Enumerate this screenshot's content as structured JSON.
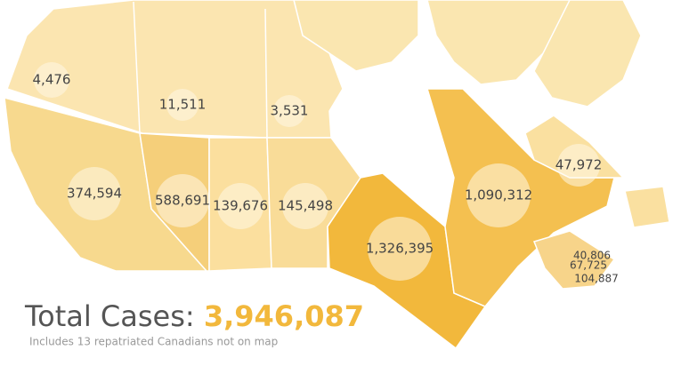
{
  "map": {
    "regions": [
      {
        "name": "Yukon",
        "label": "4,476"
      },
      {
        "name": "Northwest Territories",
        "label": "11,511"
      },
      {
        "name": "Nunavut",
        "label": "3,531"
      },
      {
        "name": "British Columbia",
        "label": "374,594"
      },
      {
        "name": "Alberta",
        "label": "588,691"
      },
      {
        "name": "Saskatchewan",
        "label": "139,676"
      },
      {
        "name": "Manitoba",
        "label": "145,498"
      },
      {
        "name": "Ontario",
        "label": "1,326,395"
      },
      {
        "name": "Quebec",
        "label": "1,090,312"
      },
      {
        "name": "Newfoundland and Labrador",
        "label": "47,972"
      },
      {
        "name": "Prince Edward Island",
        "label": "40,806"
      },
      {
        "name": "New Brunswick",
        "label": "67,725"
      },
      {
        "name": "Nova Scotia",
        "label": "104,887"
      }
    ],
    "total_label": "Total Cases:",
    "total_value": "3,946,087",
    "note": "Includes 13 repatriated Canadians not on map"
  }
}
